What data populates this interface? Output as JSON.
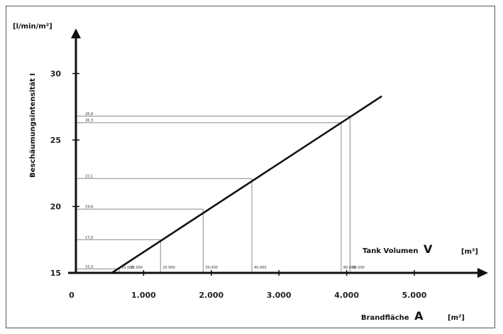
{
  "chart_data": {
    "type": "line",
    "y_unit": "[l/min/m²]",
    "ylabel": "Beschäumungsintensität I",
    "x_label_prefix": "Brandfläche",
    "x_label_var": "A",
    "x_unit": "[m²]",
    "v_label_prefix": "Tank Volumen",
    "v_label_var": "V",
    "v_unit": "[m³]",
    "ylim": [
      15,
      31
    ],
    "xlim": [
      0,
      5000
    ],
    "y_ticks": [
      {
        "value": 15,
        "label": "15"
      },
      {
        "value": 20,
        "label": "20"
      },
      {
        "value": 25,
        "label": "25"
      },
      {
        "value": 30,
        "label": "30"
      }
    ],
    "x_ticks": [
      {
        "value": 0,
        "label": "0"
      },
      {
        "value": 1000,
        "label": "1.000"
      },
      {
        "value": 2000,
        "label": "2.000"
      },
      {
        "value": 3000,
        "label": "3.000"
      },
      {
        "value": 4000,
        "label": "4.000"
      },
      {
        "value": 5000,
        "label": "5.000"
      }
    ],
    "line": {
      "x": [
        530,
        4520
      ],
      "y": [
        15,
        28.3
      ]
    },
    "markers": [
      {
        "i": 15.3,
        "i_label": "15,3",
        "area": 640,
        "volume_label": "10.000"
      },
      {
        "i": 17.5,
        "i_label": "17,5",
        "area": 1250,
        "volume_label": "20.000"
      },
      {
        "i": 19.8,
        "i_label": "19,8",
        "area": 1880,
        "volume_label": "30.000"
      },
      {
        "i": 22.1,
        "i_label": "22,1",
        "area": 2600,
        "volume_label": "40.000"
      },
      {
        "i": 26.3,
        "i_label": "26,3",
        "area": 3920,
        "volume_label": "80.000"
      },
      {
        "i": 26.8,
        "i_label": "26,8",
        "area": 4050,
        "volume_label": "90.000"
      }
    ],
    "extra_volume_labels": [
      {
        "value_area": 770,
        "label": "15.000"
      }
    ],
    "colors": {
      "line": "#111111",
      "guide": "#8a8a8a",
      "axis": "#111111"
    }
  }
}
